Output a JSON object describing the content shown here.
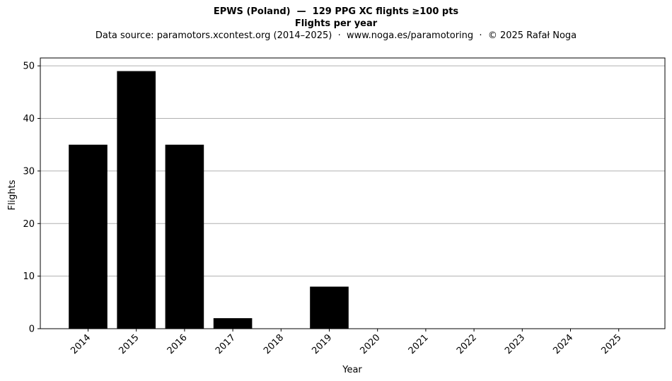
{
  "header": {
    "title": "EPWS (Poland)  —  129 PPG XC flights ≥100 pts",
    "subtitle": "Flights per year",
    "source": "Data source: paramotors.xcontest.org (2014–2025)  ·  www.noga.es/paramotoring  ·  © 2025 Rafał Noga"
  },
  "chart_data": {
    "type": "bar",
    "categories": [
      "2014",
      "2015",
      "2016",
      "2017",
      "2018",
      "2019",
      "2020",
      "2021",
      "2022",
      "2023",
      "2024",
      "2025"
    ],
    "values": [
      35,
      49,
      35,
      2,
      0,
      8,
      0,
      0,
      0,
      0,
      0,
      0
    ],
    "xlabel": "Year",
    "ylabel": "Flights",
    "ylim": [
      0,
      51.5
    ],
    "yticks": [
      0,
      10,
      20,
      30,
      40,
      50
    ],
    "grid": "y",
    "bar_color": "#000000",
    "grid_color": "#b0b0b0"
  }
}
